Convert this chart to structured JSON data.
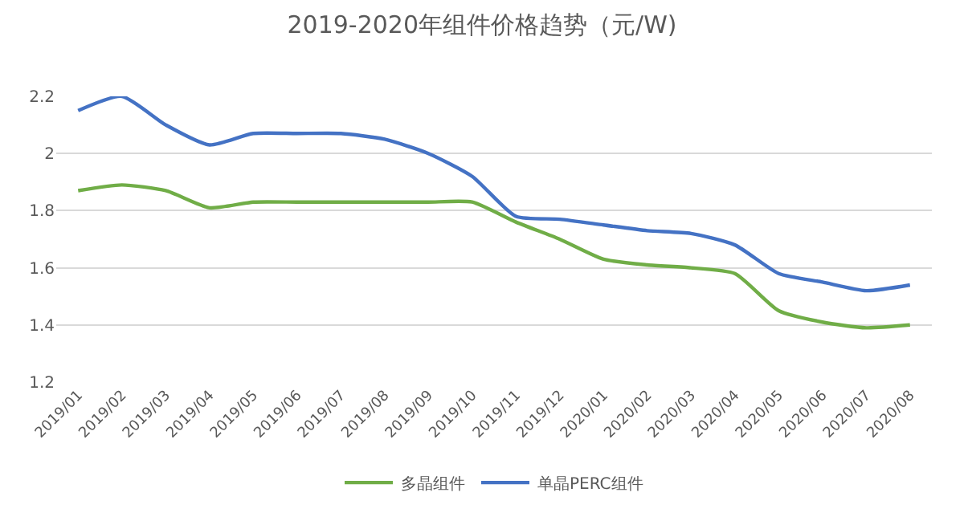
{
  "chart_data": {
    "type": "line",
    "title": "2019-2020年组件价格趋势（元/W)",
    "categories": [
      "2019/01",
      "2019/02",
      "2019/03",
      "2019/04",
      "2019/05",
      "2019/06",
      "2019/07",
      "2019/08",
      "2019/09",
      "2019/10",
      "2019/11",
      "2019/12",
      "2020/01",
      "2020/02",
      "2020/03",
      "2020/04",
      "2020/05",
      "2020/06",
      "2020/07",
      "2020/08"
    ],
    "series": [
      {
        "name": "多晶组件",
        "color": "#70ad47",
        "values": [
          1.87,
          1.89,
          1.87,
          1.81,
          1.83,
          1.83,
          1.83,
          1.83,
          1.83,
          1.83,
          1.76,
          1.7,
          1.63,
          1.61,
          1.6,
          1.58,
          1.45,
          1.41,
          1.39,
          1.4
        ]
      },
      {
        "name": "单晶PERC组件",
        "color": "#4472c4",
        "values": [
          2.15,
          2.2,
          2.1,
          2.03,
          2.07,
          2.07,
          2.07,
          2.05,
          2.0,
          1.92,
          1.78,
          1.77,
          1.75,
          1.73,
          1.72,
          1.68,
          1.58,
          1.55,
          1.52,
          1.54
        ]
      }
    ],
    "ylim": [
      1.2,
      2.2
    ],
    "yticks": [
      1.2,
      1.4,
      1.6,
      1.8,
      2,
      2.2
    ],
    "grid": "y",
    "legend": "bottom",
    "marker": "none",
    "line_style": "solid"
  }
}
